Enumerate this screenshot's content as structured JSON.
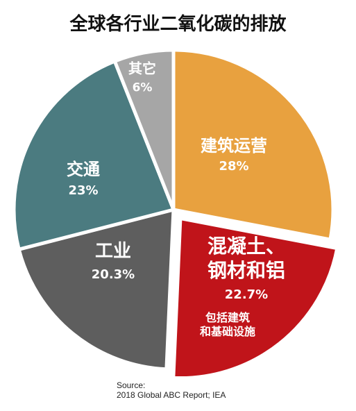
{
  "chart_data": {
    "type": "pie",
    "title": "全球各行业二氧化碳的排放",
    "categories": [
      "建筑运营",
      "混凝土、\n钢材和铝",
      "工业",
      "交通",
      "其它"
    ],
    "values": [
      28,
      22.7,
      20.3,
      23,
      6
    ],
    "value_labels": [
      "28%",
      "22.7%",
      "20.3%",
      "23%",
      "6%"
    ],
    "colors": [
      "#e8a13f",
      "#c0141a",
      "#5e5e5e",
      "#4b7b80",
      "#a6a6a6"
    ],
    "annotation": "包括建筑\n和基础设施",
    "source": "Source:\n2018 Global ABC Report; IEA"
  }
}
